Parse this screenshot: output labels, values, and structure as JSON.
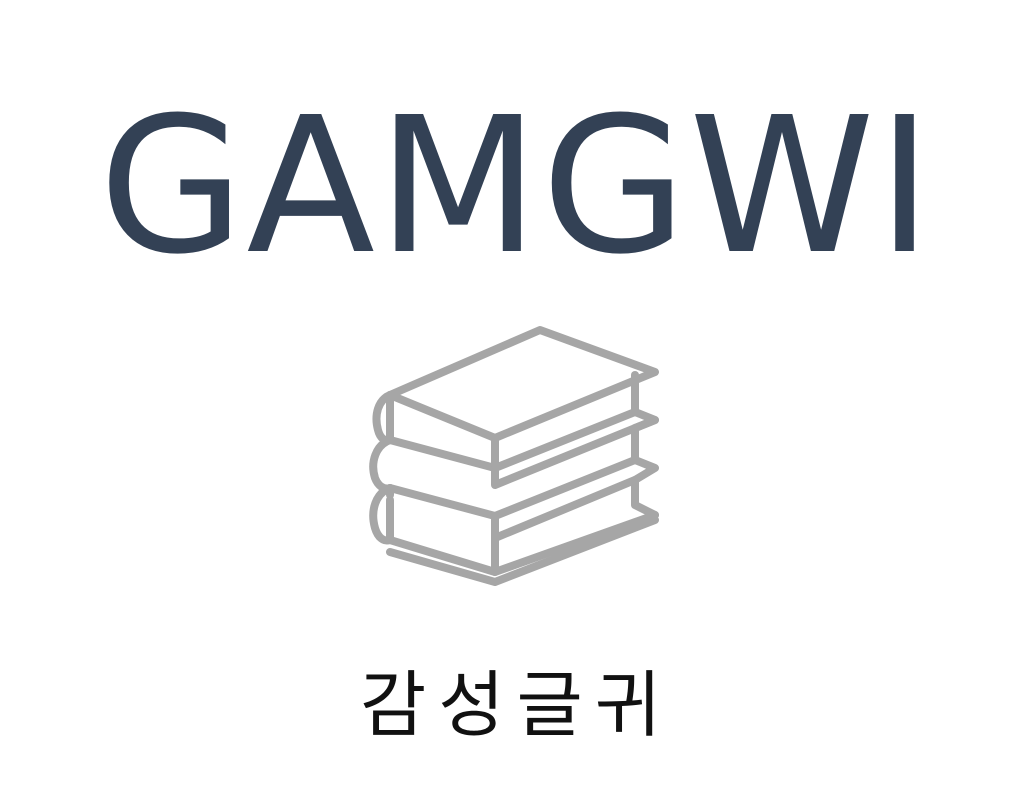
{
  "logo": {
    "name": "GAMGWI",
    "tagline": "감성글귀",
    "icon": "books-stack-icon",
    "colors": {
      "name": "#334155",
      "icon": "#a6a6a6",
      "tagline": "#111111",
      "background": "#ffffff"
    }
  }
}
